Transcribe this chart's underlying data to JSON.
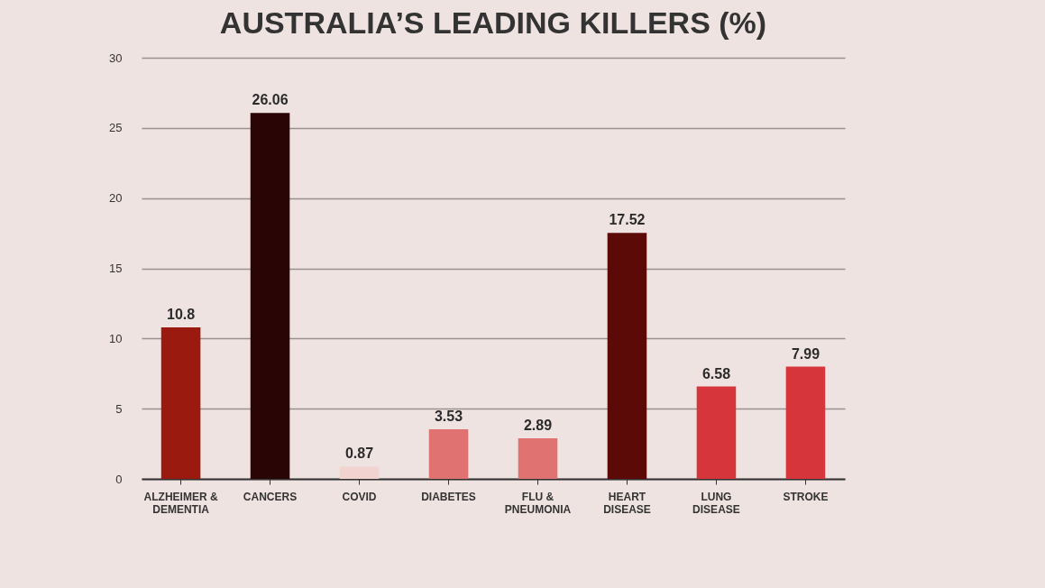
{
  "chart_data": {
    "type": "bar",
    "title": "AUSTRALIA’S LEADING KILLERS (%)",
    "categories": [
      "ALZHEIMER & DEMENTIA",
      "CANCERS",
      "COVID",
      "DIABETES",
      "FLU & PNEUMONIA",
      "HEART DISEASE",
      "LUNG DISEASE",
      "STROKE"
    ],
    "values": [
      10.8,
      26.06,
      0.87,
      3.53,
      2.89,
      17.52,
      6.58,
      7.99
    ],
    "colors": [
      "#9b1a0f",
      "#2a0505",
      "#f3d3cf",
      "#e07272",
      "#e07272",
      "#5c0a08",
      "#d6363b",
      "#d6363b"
    ],
    "ylim": [
      0,
      30
    ],
    "yticks": [
      0,
      5,
      10,
      15,
      20,
      25,
      30
    ],
    "grid": "y",
    "data_labels": true
  }
}
